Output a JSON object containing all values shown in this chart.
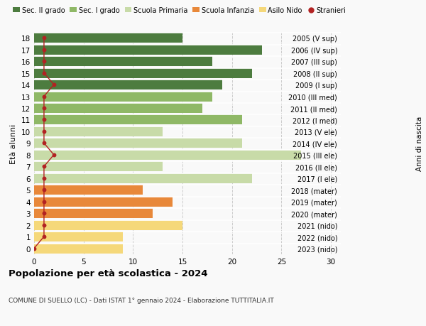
{
  "ages": [
    0,
    1,
    2,
    3,
    4,
    5,
    6,
    7,
    8,
    9,
    10,
    11,
    12,
    13,
    14,
    15,
    16,
    17,
    18
  ],
  "years": [
    "2023 (nido)",
    "2022 (nido)",
    "2021 (nido)",
    "2020 (mater)",
    "2019 (mater)",
    "2018 (mater)",
    "2017 (I ele)",
    "2016 (II ele)",
    "2015 (III ele)",
    "2014 (IV ele)",
    "2013 (V ele)",
    "2012 (I med)",
    "2011 (II med)",
    "2010 (III med)",
    "2009 (I sup)",
    "2008 (II sup)",
    "2007 (III sup)",
    "2006 (IV sup)",
    "2005 (V sup)"
  ],
  "values": [
    9,
    9,
    15,
    12,
    14,
    11,
    22,
    13,
    27,
    21,
    13,
    21,
    17,
    18,
    19,
    22,
    18,
    23,
    15
  ],
  "stranieri_vals": [
    0,
    1,
    1,
    1,
    1,
    1,
    1,
    1,
    2,
    1,
    1,
    1,
    1,
    1,
    2,
    1,
    1,
    1,
    1
  ],
  "bar_colors": [
    "#f5d87a",
    "#f5d87a",
    "#f5d87a",
    "#e8883a",
    "#e8883a",
    "#e8883a",
    "#c8dba8",
    "#c8dba8",
    "#c8dba8",
    "#c8dba8",
    "#c8dba8",
    "#8fb866",
    "#8fb866",
    "#8fb866",
    "#4d7c3f",
    "#4d7c3f",
    "#4d7c3f",
    "#4d7c3f",
    "#4d7c3f"
  ],
  "legend_labels": [
    "Sec. II grado",
    "Sec. I grado",
    "Scuola Primaria",
    "Scuola Infanzia",
    "Asilo Nido",
    "Stranieri"
  ],
  "legend_colors": [
    "#4d7c3f",
    "#8fb866",
    "#c8dba8",
    "#e8883a",
    "#f5d87a",
    "#b22222"
  ],
  "ylabel": "Età alunni",
  "right_label": "Anni di nascita",
  "title": "Popolazione per età scolastica - 2024",
  "subtitle": "COMUNE DI SUELLO (LC) - Dati ISTAT 1° gennaio 2024 - Elaborazione TUTTITALIA.IT",
  "xlim": [
    0,
    31
  ],
  "xticks": [
    0,
    5,
    10,
    15,
    20,
    25,
    30
  ],
  "bg_color": "#f9f9f9",
  "grid_color": "#cccccc",
  "stranieri_color": "#b22222",
  "stranieri_line_color": "#b22222"
}
